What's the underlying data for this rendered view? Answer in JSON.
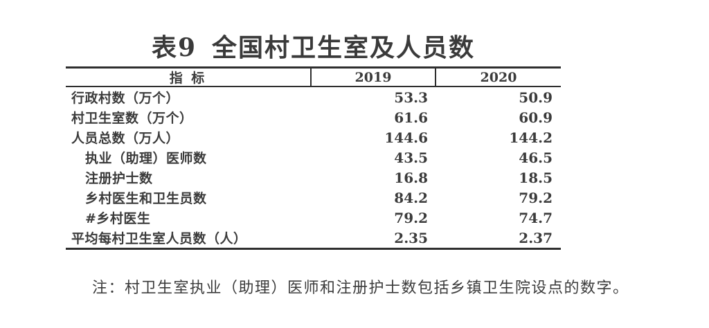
{
  "title": {
    "prefix": "表9",
    "text": "全国村卫生室及人员数"
  },
  "table": {
    "columns": [
      "指 标",
      "2019",
      "2020"
    ],
    "rows": [
      {
        "label": "行政村数（万个）",
        "indent": 0,
        "v2019": "53.3",
        "v2020": "50.9"
      },
      {
        "label": "村卫生室数（万个）",
        "indent": 0,
        "v2019": "61.6",
        "v2020": "60.9"
      },
      {
        "label": "人员总数（万人）",
        "indent": 0,
        "v2019": "144.6",
        "v2020": "144.2"
      },
      {
        "label": "执业（助理）医师数",
        "indent": 1,
        "v2019": "43.5",
        "v2020": "46.5"
      },
      {
        "label": "注册护士数",
        "indent": 1,
        "v2019": "16.8",
        "v2020": "18.5"
      },
      {
        "label": "乡村医生和卫生员数",
        "indent": 1,
        "v2019": "84.2",
        "v2020": "79.2"
      },
      {
        "label": "#乡村医生",
        "indent": 1,
        "v2019": "79.2",
        "v2020": "74.7"
      },
      {
        "label": "平均每村卫生室人员数（人）",
        "indent": 0,
        "v2019": "2.35",
        "v2020": "2.37"
      }
    ]
  },
  "note": "注：村卫生室执业（助理）医师和注册护士数包括乡镇卫生院设点的数字。",
  "colors": {
    "text": "#3b3b3b",
    "rule": "#2e2e2e",
    "background": "#ffffff"
  },
  "chart_data": {
    "type": "table",
    "title": "表9 全国村卫生室及人员数",
    "categories": [
      "2019",
      "2020"
    ],
    "series": [
      {
        "name": "行政村数（万个）",
        "values": [
          53.3,
          50.9
        ]
      },
      {
        "name": "村卫生室数（万个）",
        "values": [
          61.6,
          60.9
        ]
      },
      {
        "name": "人员总数（万人）",
        "values": [
          144.6,
          144.2
        ]
      },
      {
        "name": "执业（助理）医师数",
        "values": [
          43.5,
          46.5
        ]
      },
      {
        "name": "注册护士数",
        "values": [
          16.8,
          18.5
        ]
      },
      {
        "name": "乡村医生和卫生员数",
        "values": [
          84.2,
          79.2
        ]
      },
      {
        "name": "#乡村医生",
        "values": [
          79.2,
          74.7
        ]
      },
      {
        "name": "平均每村卫生室人员数（人）",
        "values": [
          2.35,
          2.37
        ]
      }
    ]
  }
}
